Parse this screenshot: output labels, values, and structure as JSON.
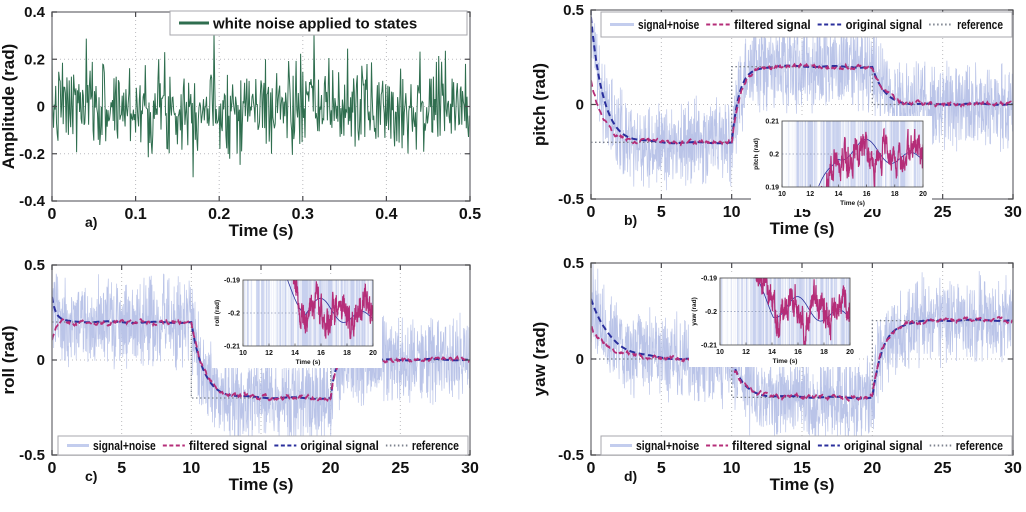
{
  "figure": {
    "background": "#ffffff",
    "description": "Four-panel simulation figure: white noise input and pitch/roll/yaw tracking responses"
  },
  "chart_data": [
    {
      "id": "a",
      "type": "line",
      "panel_label": "a)",
      "xlabel": "Time (s)",
      "ylabel": "Amplitude (rad)",
      "xlim": [
        0,
        0.5
      ],
      "ylim": [
        -0.4,
        0.4
      ],
      "xticks": [
        0,
        0.1,
        0.2,
        0.3,
        0.4,
        0.5
      ],
      "xtick_labels": [
        "0",
        "0.1",
        "0.2",
        "0.3",
        "0.4",
        "0.5"
      ],
      "yticks": [
        -0.4,
        -0.2,
        0,
        0.2,
        0.4
      ],
      "ytick_labels": [
        "-0.4",
        "-0.2",
        "0",
        "0.2",
        "0.4"
      ],
      "grid": true,
      "legend": {
        "position": "top-right",
        "items": [
          {
            "label": "white noise applied to states",
            "color": "#2f6e4f",
            "style": "solid"
          }
        ]
      },
      "series": [
        {
          "name": "white noise applied to states",
          "kind": "white-noise",
          "mean": 0,
          "std": 0.095,
          "peak": 0.34,
          "points": 560,
          "color": "#2f6e4f"
        }
      ]
    },
    {
      "id": "b",
      "type": "line",
      "panel_label": "b)",
      "xlabel": "Time (s)",
      "ylabel": "pitch (rad)",
      "xlim": [
        0,
        30
      ],
      "ylim": [
        -0.5,
        0.5
      ],
      "xticks": [
        0,
        5,
        10,
        15,
        20,
        25,
        30
      ],
      "xtick_labels": [
        "0",
        "5",
        "10",
        "15",
        "20",
        "25",
        "30"
      ],
      "yticks": [
        -0.5,
        0,
        0.5
      ],
      "ytick_labels": [
        "-0.5",
        "0",
        "0.5"
      ],
      "grid": true,
      "colors": {
        "noise": "#b6c1e7",
        "filtered": "#b52d78",
        "original": "#2a2f9c",
        "reference": "#7c828e"
      },
      "legend": {
        "position": "top",
        "items": [
          {
            "label": "signal+noise",
            "color": "#c3cdee",
            "style": "solid"
          },
          {
            "label": "filtered signal",
            "color": "#b52d78",
            "style": "dashed"
          },
          {
            "label": "original signal",
            "color": "#2a2f9c",
            "style": "dashed"
          },
          {
            "label": "reference",
            "color": "#7c828e",
            "style": "dotted"
          }
        ]
      },
      "reference_steps": [
        {
          "t0": 0,
          "t1": 10,
          "y": -0.2
        },
        {
          "t0": 10,
          "t1": 20,
          "y": 0.2
        },
        {
          "t0": 20,
          "t1": 30,
          "y": 0
        }
      ],
      "original_segments": [
        {
          "t0": 0,
          "t1": 10,
          "from": 0.46,
          "to": -0.2,
          "tau": 0.85
        },
        {
          "t0": 10,
          "t1": 20,
          "from": -0.2,
          "to": 0.2,
          "tau": 0.55
        },
        {
          "t0": 20,
          "t1": 30,
          "from": 0.2,
          "to": 0,
          "tau": 0.8
        }
      ],
      "filtered_segments": [
        {
          "t0": 0,
          "t1": 10,
          "from": 0.13,
          "to": -0.2,
          "tau": 0.85
        },
        {
          "t0": 10,
          "t1": 20,
          "from": -0.2,
          "to": 0.2,
          "tau": 0.6
        },
        {
          "t0": 20,
          "t1": 30,
          "from": 0.2,
          "to": 0,
          "tau": 0.8
        }
      ],
      "noise_amplitude": 0.27,
      "inset": {
        "xlim": [
          10,
          20
        ],
        "ylim": [
          0.19,
          0.21
        ],
        "center": 0.2,
        "approach": "below",
        "start_t": 12.6,
        "xticks": [
          10,
          12,
          14,
          16,
          18,
          20
        ],
        "xtick_labels": [
          "10",
          "12",
          "14",
          "16",
          "18",
          "20"
        ],
        "yticks": [
          0.19,
          0.2,
          0.21
        ],
        "ytick_labels": [
          "0.19",
          "0.2",
          "0.21"
        ],
        "xlabel": "Time (s)",
        "ylabel": "pitch (rad)"
      }
    },
    {
      "id": "c",
      "type": "line",
      "panel_label": "c)",
      "xlabel": "Time (s)",
      "ylabel": "roll (rad)",
      "xlim": [
        0,
        30
      ],
      "ylim": [
        -0.5,
        0.5
      ],
      "xticks": [
        0,
        5,
        10,
        15,
        20,
        25,
        30
      ],
      "xtick_labels": [
        "0",
        "5",
        "10",
        "15",
        "20",
        "25",
        "30"
      ],
      "yticks": [
        -0.5,
        0,
        0.5
      ],
      "ytick_labels": [
        "-0.5",
        "0",
        "0.5"
      ],
      "grid": true,
      "colors": {
        "noise": "#b6c1e7",
        "filtered": "#b52d78",
        "original": "#2a2f9c",
        "reference": "#7c828e"
      },
      "legend": {
        "position": "bottom",
        "items": [
          {
            "label": "signal+noise",
            "color": "#c3cdee",
            "style": "solid"
          },
          {
            "label": "filtered signal",
            "color": "#b52d78",
            "style": "dashed"
          },
          {
            "label": "original signal",
            "color": "#2a2f9c",
            "style": "dashed"
          },
          {
            "label": "reference",
            "color": "#7c828e",
            "style": "dotted"
          }
        ]
      },
      "reference_steps": [
        {
          "t0": 0,
          "t1": 10,
          "y": 0.2
        },
        {
          "t0": 10,
          "t1": 20,
          "y": -0.2
        },
        {
          "t0": 20,
          "t1": 30,
          "y": 0
        }
      ],
      "original_segments": [
        {
          "t0": 0,
          "t1": 10,
          "from": 0.33,
          "to": 0.2,
          "tau": 0.28
        },
        {
          "t0": 10,
          "t1": 20,
          "from": 0.2,
          "to": -0.2,
          "tau": 0.85
        },
        {
          "t0": 20,
          "t1": 30,
          "from": -0.2,
          "to": 0,
          "tau": 0.28
        }
      ],
      "filtered_segments": [
        {
          "t0": 0,
          "t1": 10,
          "from": 0.1,
          "to": 0.2,
          "tau": 0.28
        },
        {
          "t0": 10,
          "t1": 20,
          "from": 0.2,
          "to": -0.2,
          "tau": 0.9
        },
        {
          "t0": 20,
          "t1": 30,
          "from": -0.2,
          "to": 0,
          "tau": 0.3
        }
      ],
      "noise_amplitude": 0.27,
      "inset": {
        "xlim": [
          10,
          20
        ],
        "ylim": [
          -0.21,
          -0.19
        ],
        "center": -0.2,
        "approach": "above",
        "start_t": 13.4,
        "xticks": [
          10,
          12,
          14,
          16,
          18,
          20
        ],
        "xtick_labels": [
          "10",
          "12",
          "14",
          "16",
          "18",
          "20"
        ],
        "yticks": [
          -0.21,
          -0.2,
          -0.19
        ],
        "ytick_labels": [
          "-0.21",
          "-0.2",
          "-0.19"
        ],
        "xlabel": "Time (s)",
        "ylabel": "roll (rad)"
      }
    },
    {
      "id": "d",
      "type": "line",
      "panel_label": "d)",
      "xlabel": "Time (s)",
      "ylabel": "yaw (rad)",
      "xlim": [
        0,
        30
      ],
      "ylim": [
        -0.5,
        0.5
      ],
      "xticks": [
        0,
        5,
        10,
        15,
        20,
        25,
        30
      ],
      "xtick_labels": [
        "0",
        "5",
        "10",
        "15",
        "20",
        "25",
        "30"
      ],
      "yticks": [
        -0.5,
        0,
        0.5
      ],
      "ytick_labels": [
        "-0.5",
        "0",
        "0.5"
      ],
      "grid": true,
      "colors": {
        "noise": "#b6c1e7",
        "filtered": "#b52d78",
        "original": "#2a2f9c",
        "reference": "#7c828e"
      },
      "legend": {
        "position": "bottom",
        "items": [
          {
            "label": "signal+noise",
            "color": "#c3cdee",
            "style": "solid"
          },
          {
            "label": "filtered signal",
            "color": "#b52d78",
            "style": "dashed"
          },
          {
            "label": "original signal",
            "color": "#2a2f9c",
            "style": "dashed"
          },
          {
            "label": "reference",
            "color": "#7c828e",
            "style": "dotted"
          }
        ]
      },
      "reference_steps": [
        {
          "t0": 0,
          "t1": 10,
          "y": 0
        },
        {
          "t0": 10,
          "t1": 20,
          "y": -0.2
        },
        {
          "t0": 20,
          "t1": 30,
          "y": 0.2
        }
      ],
      "original_segments": [
        {
          "t0": 0,
          "t1": 10,
          "from": 0.31,
          "to": 0,
          "tau": 1.4
        },
        {
          "t0": 10,
          "t1": 20,
          "from": 0,
          "to": -0.2,
          "tau": 0.8
        },
        {
          "t0": 20,
          "t1": 30,
          "from": -0.2,
          "to": 0.2,
          "tau": 0.75
        }
      ],
      "filtered_segments": [
        {
          "t0": 0,
          "t1": 10,
          "from": 0.16,
          "to": 0,
          "tau": 1.4
        },
        {
          "t0": 10,
          "t1": 20,
          "from": 0,
          "to": -0.2,
          "tau": 0.85
        },
        {
          "t0": 20,
          "t1": 30,
          "from": -0.2,
          "to": 0.2,
          "tau": 0.78
        }
      ],
      "noise_amplitude": 0.27,
      "inset": {
        "xlim": [
          10,
          20
        ],
        "ylim": [
          -0.21,
          -0.19
        ],
        "center": -0.2,
        "approach": "above",
        "start_t": 12.7,
        "xticks": [
          10,
          12,
          14,
          16,
          18,
          20
        ],
        "xtick_labels": [
          "10",
          "12",
          "14",
          "16",
          "18",
          "20"
        ],
        "yticks": [
          -0.21,
          -0.2,
          -0.19
        ],
        "ytick_labels": [
          "-0.21",
          "-0.2",
          "-0.19"
        ],
        "xlabel": "Time (s)",
        "ylabel": "yaw (rad)"
      }
    }
  ]
}
